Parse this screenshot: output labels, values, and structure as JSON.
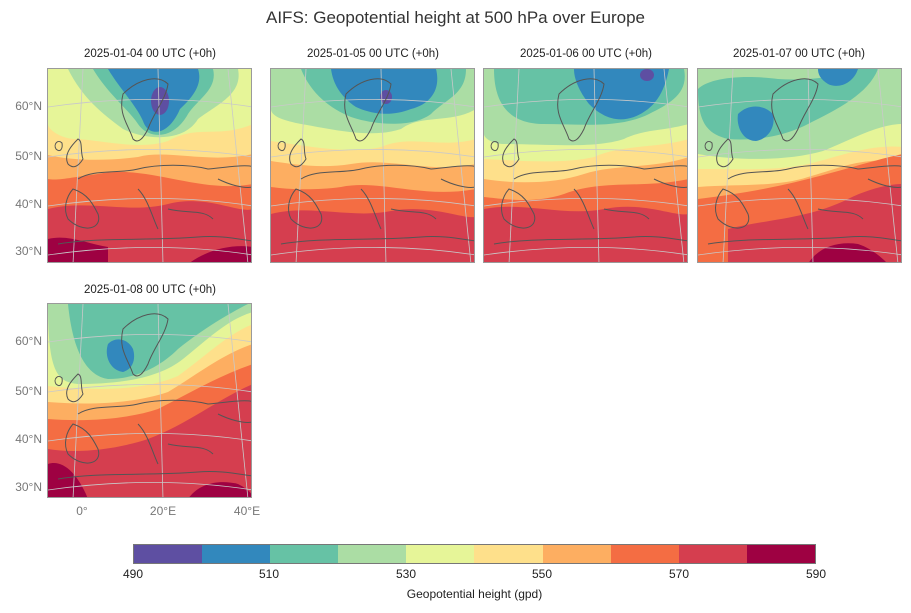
{
  "title": "AIFS: Geopotential height at 500 hPa over Europe",
  "panels": [
    {
      "title": "2025-01-04 00 UTC (+0h)"
    },
    {
      "title": "2025-01-05 00 UTC (+0h)"
    },
    {
      "title": "2025-01-06 00 UTC (+0h)"
    },
    {
      "title": "2025-01-07 00 UTC (+0h)"
    },
    {
      "title": "2025-01-08 00 UTC (+0h)"
    }
  ],
  "lat_labels": [
    "60°N",
    "50°N",
    "40°N",
    "30°N"
  ],
  "lon_labels": [
    "0°",
    "20°E",
    "40°E"
  ],
  "colorbar": {
    "label": "Geopotential height (gpd)",
    "ticks": [
      "490",
      "510",
      "530",
      "550",
      "570",
      "590"
    ],
    "levels": [
      490,
      500,
      510,
      520,
      530,
      540,
      550,
      560,
      570,
      580,
      590
    ],
    "colors": [
      "#5e4fa2",
      "#3288bd",
      "#66c2a5",
      "#abdda4",
      "#e6f598",
      "#fee08b",
      "#fdae61",
      "#f46d43",
      "#d53e4f",
      "#9e0142"
    ]
  }
}
